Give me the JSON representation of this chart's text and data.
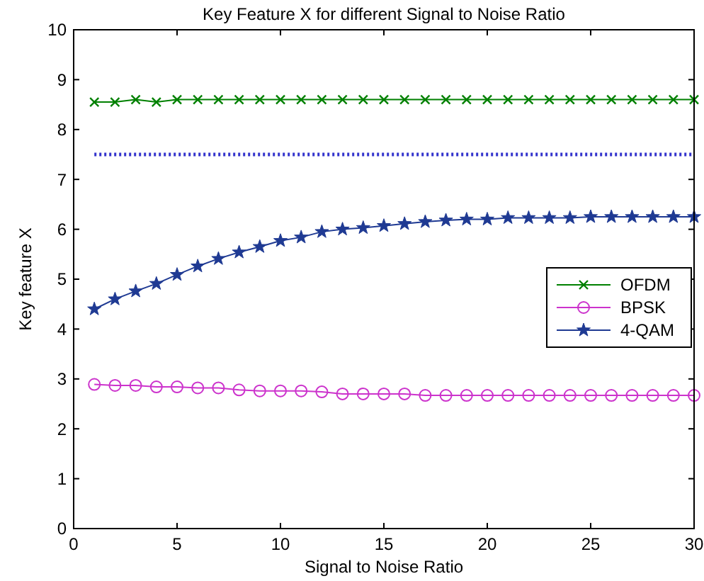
{
  "chart_data": {
    "type": "line",
    "title": "Key Feature X for different Signal to Noise Ratio",
    "xlabel": "Signal to Noise Ratio",
    "ylabel": "Key feature X",
    "x": [
      1,
      2,
      3,
      4,
      5,
      6,
      7,
      8,
      9,
      10,
      11,
      12,
      13,
      14,
      15,
      16,
      17,
      18,
      19,
      20,
      21,
      22,
      23,
      24,
      25,
      26,
      27,
      28,
      29,
      30
    ],
    "series": [
      {
        "name": "OFDM",
        "color": "#008000",
        "marker": "cross",
        "values": [
          8.55,
          8.55,
          8.6,
          8.55,
          8.6,
          8.6,
          8.6,
          8.6,
          8.6,
          8.6,
          8.6,
          8.6,
          8.6,
          8.6,
          8.6,
          8.6,
          8.6,
          8.6,
          8.6,
          8.6,
          8.6,
          8.6,
          8.6,
          8.6,
          8.6,
          8.6,
          8.6,
          8.6,
          8.6,
          8.6
        ]
      },
      {
        "name": "BPSK",
        "color": "#cc33cc",
        "marker": "circle",
        "values": [
          2.89,
          2.87,
          2.87,
          2.84,
          2.84,
          2.82,
          2.82,
          2.78,
          2.76,
          2.76,
          2.76,
          2.74,
          2.7,
          2.7,
          2.7,
          2.7,
          2.67,
          2.67,
          2.67,
          2.67,
          2.67,
          2.67,
          2.67,
          2.67,
          2.67,
          2.67,
          2.67,
          2.67,
          2.67,
          2.67
        ]
      },
      {
        "name": "4-QAM",
        "color": "#1f3a93",
        "marker": "star",
        "values": [
          4.4,
          4.6,
          4.76,
          4.91,
          5.09,
          5.26,
          5.41,
          5.54,
          5.65,
          5.77,
          5.84,
          5.95,
          6.0,
          6.03,
          6.07,
          6.11,
          6.15,
          6.18,
          6.2,
          6.2,
          6.23,
          6.23,
          6.23,
          6.23,
          6.25,
          6.25,
          6.25,
          6.25,
          6.25,
          6.25
        ]
      }
    ],
    "ref_lines": [
      {
        "axis": "y",
        "value": 7.5,
        "color": "#3333cc",
        "line_style": "dotted"
      }
    ],
    "xlim": [
      0,
      30
    ],
    "xticks": [
      0,
      5,
      10,
      15,
      20,
      25,
      30
    ],
    "ylim": [
      0,
      10
    ],
    "yticks": [
      0,
      1,
      2,
      3,
      4,
      5,
      6,
      7,
      8,
      9,
      10
    ],
    "grid": false,
    "legend": "right"
  }
}
